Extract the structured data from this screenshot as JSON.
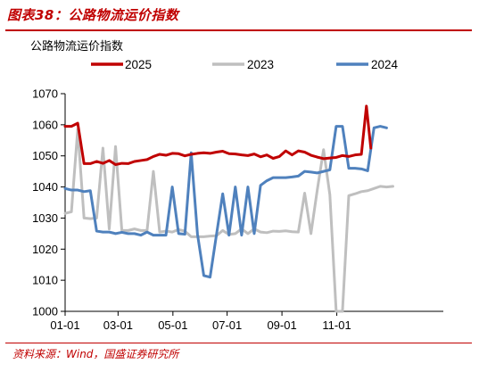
{
  "figure": {
    "title": "图表38：公路物流运价指数",
    "source": "资料来源：Wind，国盛证券研究所"
  },
  "colors": {
    "accent": "#c00000",
    "series_2025": "#c00000",
    "series_2023": "#bfbfbf",
    "series_2024": "#4f81bd"
  },
  "chart_data": {
    "type": "line",
    "title": "公路物流运价指数",
    "ylim": [
      1000,
      1070
    ],
    "yticks": [
      1000,
      1010,
      1020,
      1030,
      1040,
      1050,
      1060,
      1070
    ],
    "xlim": [
      0,
      60
    ],
    "xticks": [
      {
        "label": "01-01",
        "x": 0
      },
      {
        "label": "03-01",
        "x": 8.4
      },
      {
        "label": "05-01",
        "x": 17.1
      },
      {
        "label": "07-01",
        "x": 25.7
      },
      {
        "label": "09-01",
        "x": 34.4
      },
      {
        "label": "11-01",
        "x": 43.1
      }
    ],
    "grid": false,
    "legend_position": "top",
    "legend_order": [
      "2025",
      "2023",
      "2024"
    ],
    "series": [
      {
        "name": "2025",
        "color": "#c00000",
        "x": [
          0,
          1,
          2,
          3,
          4,
          5,
          6,
          7,
          8,
          9,
          10,
          11,
          12,
          13,
          14,
          15,
          16,
          17,
          18,
          19,
          20,
          21,
          22,
          23,
          24,
          25,
          26,
          27,
          28,
          29,
          30,
          31,
          32,
          33,
          34,
          35,
          36,
          37,
          38,
          39,
          40,
          41,
          42,
          43,
          44,
          45,
          46,
          47,
          47.8,
          48.5
        ],
        "values": [
          1059.5,
          1059.5,
          1060.5,
          1047.5,
          1047.5,
          1048.2,
          1047.6,
          1048.5,
          1047.2,
          1047.6,
          1047.5,
          1048.2,
          1048.5,
          1048.8,
          1049.8,
          1050.5,
          1050.2,
          1050.8,
          1050.7,
          1050,
          1050.5,
          1050.8,
          1051,
          1050.8,
          1051.2,
          1051.5,
          1050.7,
          1050.6,
          1050.3,
          1050.1,
          1050.6,
          1049.7,
          1050.3,
          1049.2,
          1049.8,
          1051.6,
          1050.3,
          1051.6,
          1051.2,
          1050.2,
          1049.6,
          1049.1,
          1049.3,
          1049.5,
          1050.1,
          1049.8,
          1050.3,
          1050.5,
          1066,
          1052.5
        ]
      },
      {
        "name": "2023",
        "color": "#bfbfbf",
        "x": [
          0,
          1,
          2,
          3,
          4,
          5,
          6,
          7,
          8,
          9,
          10,
          11,
          12,
          13,
          14,
          15,
          16,
          17,
          18,
          19,
          20,
          21,
          22,
          23,
          24,
          25,
          26,
          27,
          28,
          29,
          30,
          31,
          32,
          33,
          34,
          35,
          36,
          37,
          38,
          39,
          40,
          41,
          42,
          43,
          44,
          45,
          46,
          47,
          48,
          49,
          50,
          51,
          52
        ],
        "values": [
          1031.5,
          1032,
          1058.5,
          1030,
          1029.8,
          1030,
          1052.5,
          1026.5,
          1053,
          1026,
          1026,
          1026.5,
          1026,
          1026,
          1045,
          1025.5,
          1025.8,
          1025.5,
          1026.3,
          1025.8,
          1024,
          1024,
          1024,
          1024.2,
          1024.3,
          1026,
          1024.7,
          1025,
          1026.5,
          1025,
          1026.5,
          1025.5,
          1025.3,
          1025.8,
          1025.7,
          1025.9,
          1025.6,
          1025.5,
          1038,
          1025,
          1039,
          1052,
          1037.5,
          1000,
          1000,
          1037.2,
          1037.8,
          1038.5,
          1038.8,
          1039.5,
          1040.2,
          1040,
          1040.2
        ]
      },
      {
        "name": "2024",
        "color": "#4f81bd",
        "x": [
          0,
          1,
          2,
          3,
          4,
          5,
          6,
          7,
          8,
          9,
          10,
          11,
          12,
          13,
          14,
          15,
          16,
          17,
          18,
          19,
          20,
          21,
          22,
          23,
          24,
          25,
          26,
          27,
          28,
          29,
          30,
          31,
          32,
          33,
          34,
          35,
          36,
          37,
          38,
          39,
          40,
          41,
          42,
          43,
          44,
          45,
          46,
          47,
          48,
          49,
          50,
          51
        ],
        "values": [
          1039.5,
          1039,
          1039,
          1038.5,
          1038.8,
          1025.8,
          1025.5,
          1025.5,
          1025,
          1025.4,
          1025,
          1025,
          1024.5,
          1025.5,
          1024.5,
          1024.5,
          1024.5,
          1040,
          1025,
          1024.8,
          1051,
          1024.8,
          1011.5,
          1011,
          1024.5,
          1037.8,
          1024.5,
          1040,
          1024.5,
          1040,
          1025,
          1040.5,
          1042,
          1043,
          1043,
          1043,
          1043.2,
          1043.5,
          1045,
          1044.8,
          1044.5,
          1045,
          1045.5,
          1059.5,
          1059.5,
          1046,
          1046,
          1045.8,
          1045.2,
          1059,
          1059.5,
          1059
        ]
      }
    ]
  }
}
